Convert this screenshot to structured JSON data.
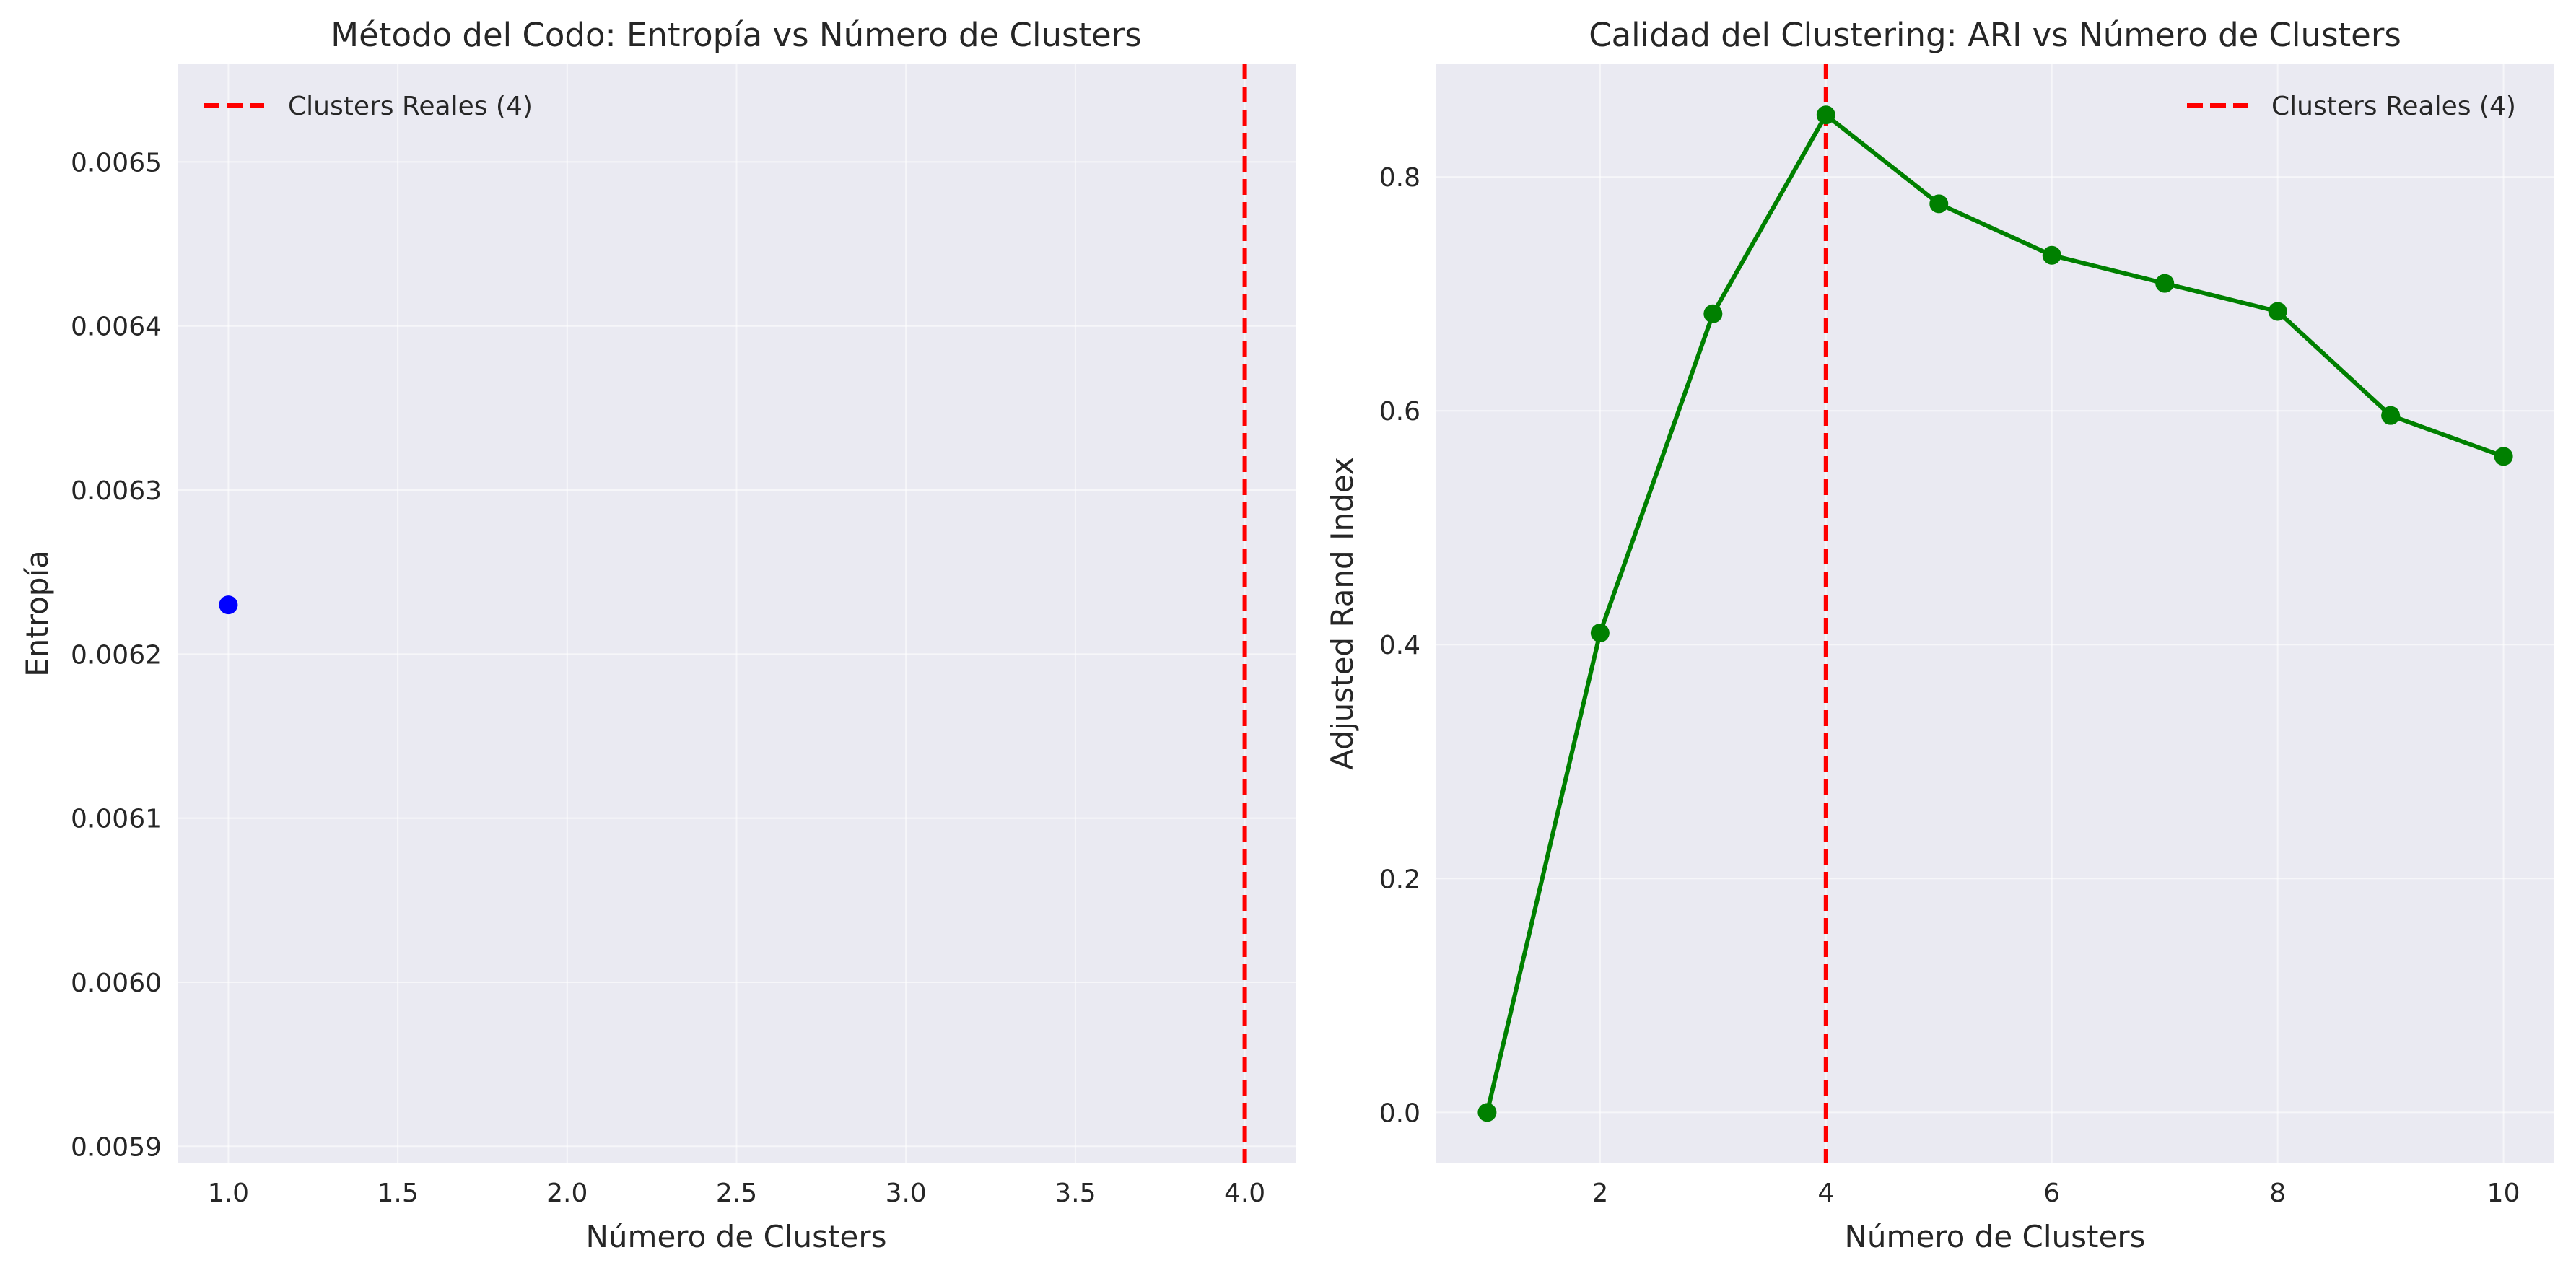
{
  "chart_data": [
    {
      "type": "scatter",
      "title": "Método del Codo: Entropía vs Número de Clusters",
      "xlabel": "Número de Clusters",
      "ylabel": "Entropía",
      "xlim": [
        0.85,
        4.15
      ],
      "ylim": [
        0.00589,
        0.00656
      ],
      "xticks": [
        1.0,
        1.5,
        2.0,
        2.5,
        3.0,
        3.5,
        4.0
      ],
      "xtick_labels": [
        "1.0",
        "1.5",
        "2.0",
        "2.5",
        "3.0",
        "3.5",
        "4.0"
      ],
      "yticks": [
        0.0059,
        0.006,
        0.0061,
        0.0062,
        0.0063,
        0.0064,
        0.0065
      ],
      "ytick_labels": [
        "0.0059",
        "0.0060",
        "0.0061",
        "0.0062",
        "0.0063",
        "0.0064",
        "0.0065"
      ],
      "grid": true,
      "legend_position": "top-left",
      "series": [
        {
          "name": "Entropía",
          "x": [
            1
          ],
          "values": [
            0.00623
          ],
          "color": "#0000ff",
          "line": false
        }
      ],
      "reference_line": {
        "x": 4,
        "label": "Clusters Reales (4)",
        "color": "#ff0000",
        "style": "dashed"
      }
    },
    {
      "type": "line",
      "title": "Calidad del Clustering: ARI vs Número de Clusters",
      "xlabel": "Número de Clusters",
      "ylabel": "Adjusted Rand Index",
      "xlim": [
        0.55,
        10.45
      ],
      "ylim": [
        -0.043,
        0.897
      ],
      "xticks": [
        2,
        4,
        6,
        8,
        10
      ],
      "xtick_labels": [
        "2",
        "4",
        "6",
        "8",
        "10"
      ],
      "yticks": [
        0.0,
        0.2,
        0.4,
        0.6,
        0.8
      ],
      "ytick_labels": [
        "0.0",
        "0.2",
        "0.4",
        "0.6",
        "0.8"
      ],
      "grid": true,
      "legend_position": "top-right",
      "series": [
        {
          "name": "ARI",
          "x": [
            1,
            2,
            3,
            4,
            5,
            6,
            7,
            8,
            9,
            10
          ],
          "values": [
            0.0,
            0.41,
            0.683,
            0.853,
            0.777,
            0.733,
            0.709,
            0.685,
            0.596,
            0.561
          ],
          "color": "#008000",
          "line": true
        }
      ],
      "reference_line": {
        "x": 4,
        "label": "Clusters Reales (4)",
        "color": "#ff0000",
        "style": "dashed"
      }
    }
  ]
}
